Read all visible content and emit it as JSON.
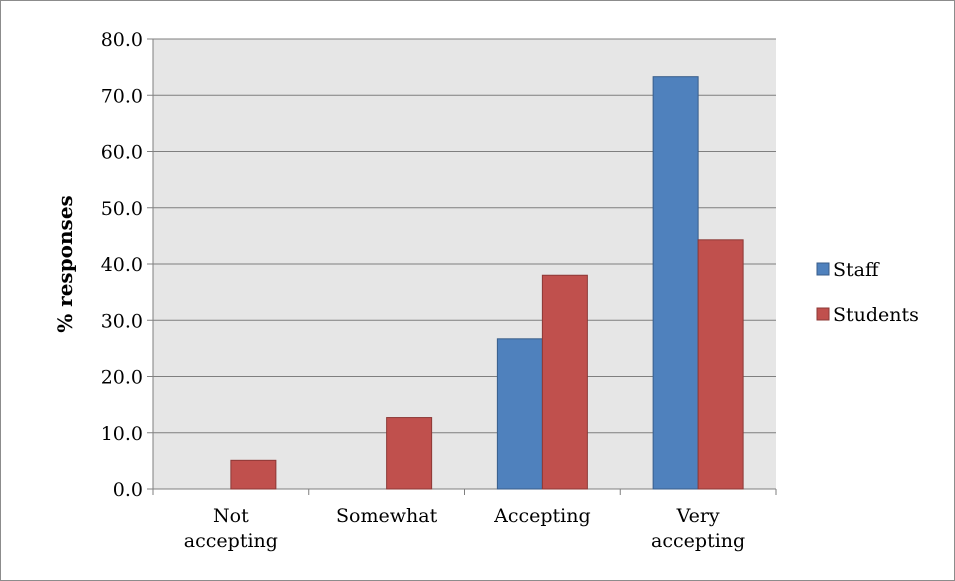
{
  "chart_data": {
    "type": "bar",
    "title": "",
    "xlabel": "",
    "ylabel": "% responses",
    "ylim": [
      0,
      80
    ],
    "yticks": [
      0,
      10,
      20,
      30,
      40,
      50,
      60,
      70,
      80
    ],
    "ytick_labels": [
      "0.0",
      "10.0",
      "20.0",
      "30.0",
      "40.0",
      "50.0",
      "60.0",
      "70.0",
      "80.0"
    ],
    "categories": [
      [
        "Not",
        "accepting"
      ],
      [
        "Somewhat"
      ],
      [
        "Accepting"
      ],
      [
        "Very",
        "accepting"
      ]
    ],
    "series": [
      {
        "name": "Staff",
        "color": "#4f81bd",
        "stroke": "#385d8a",
        "values": [
          0.0,
          0.0,
          26.7,
          73.3
        ]
      },
      {
        "name": "Students",
        "color": "#c0504d",
        "stroke": "#8c3836",
        "values": [
          5.1,
          12.7,
          38.0,
          44.3
        ]
      }
    ],
    "grid": true,
    "plot_background": "#e6e6e6",
    "legend_position": "right"
  }
}
